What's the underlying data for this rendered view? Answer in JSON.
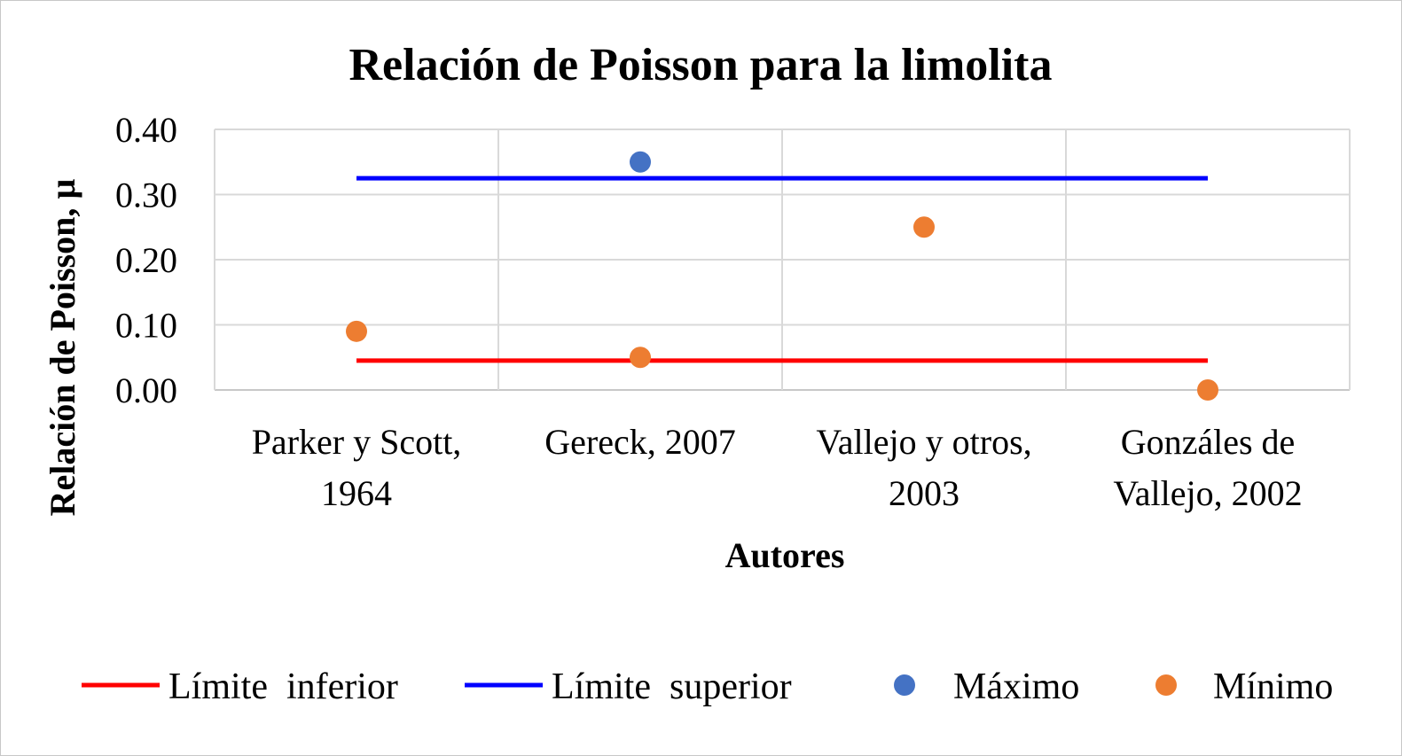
{
  "chart_data": {
    "type": "scatter",
    "title": "Relación de Poisson para la limolita",
    "xlabel": "Autores",
    "ylabel": "Relación de Poisson, µ",
    "categories": [
      [
        "Parker y Scott,",
        "1964"
      ],
      [
        "Gereck, 2007"
      ],
      [
        "Vallejo y otros,",
        "2003"
      ],
      [
        "Gonzáles de",
        "Vallejo, 2002"
      ]
    ],
    "ylim": [
      0,
      0.4
    ],
    "yticks": [
      "0.00",
      "0.10",
      "0.20",
      "0.30",
      "0.40"
    ],
    "grid": true,
    "legend_position": "bottom",
    "reference_lines": [
      {
        "name": "Límite  inferior",
        "value": 0.045,
        "color": "#ff0000"
      },
      {
        "name": "Límite  superior",
        "value": 0.325,
        "color": "#0000ff"
      }
    ],
    "series": [
      {
        "name": "Máximo",
        "color": "#4472c4",
        "points": [
          {
            "category": 1,
            "value": 0.35
          }
        ]
      },
      {
        "name": "Mínimo",
        "color": "#ed7d31",
        "points": [
          {
            "category": 0,
            "value": 0.09
          },
          {
            "category": 1,
            "value": 0.05
          },
          {
            "category": 2,
            "value": 0.25
          },
          {
            "category": 3,
            "value": 0.0
          }
        ]
      }
    ]
  }
}
